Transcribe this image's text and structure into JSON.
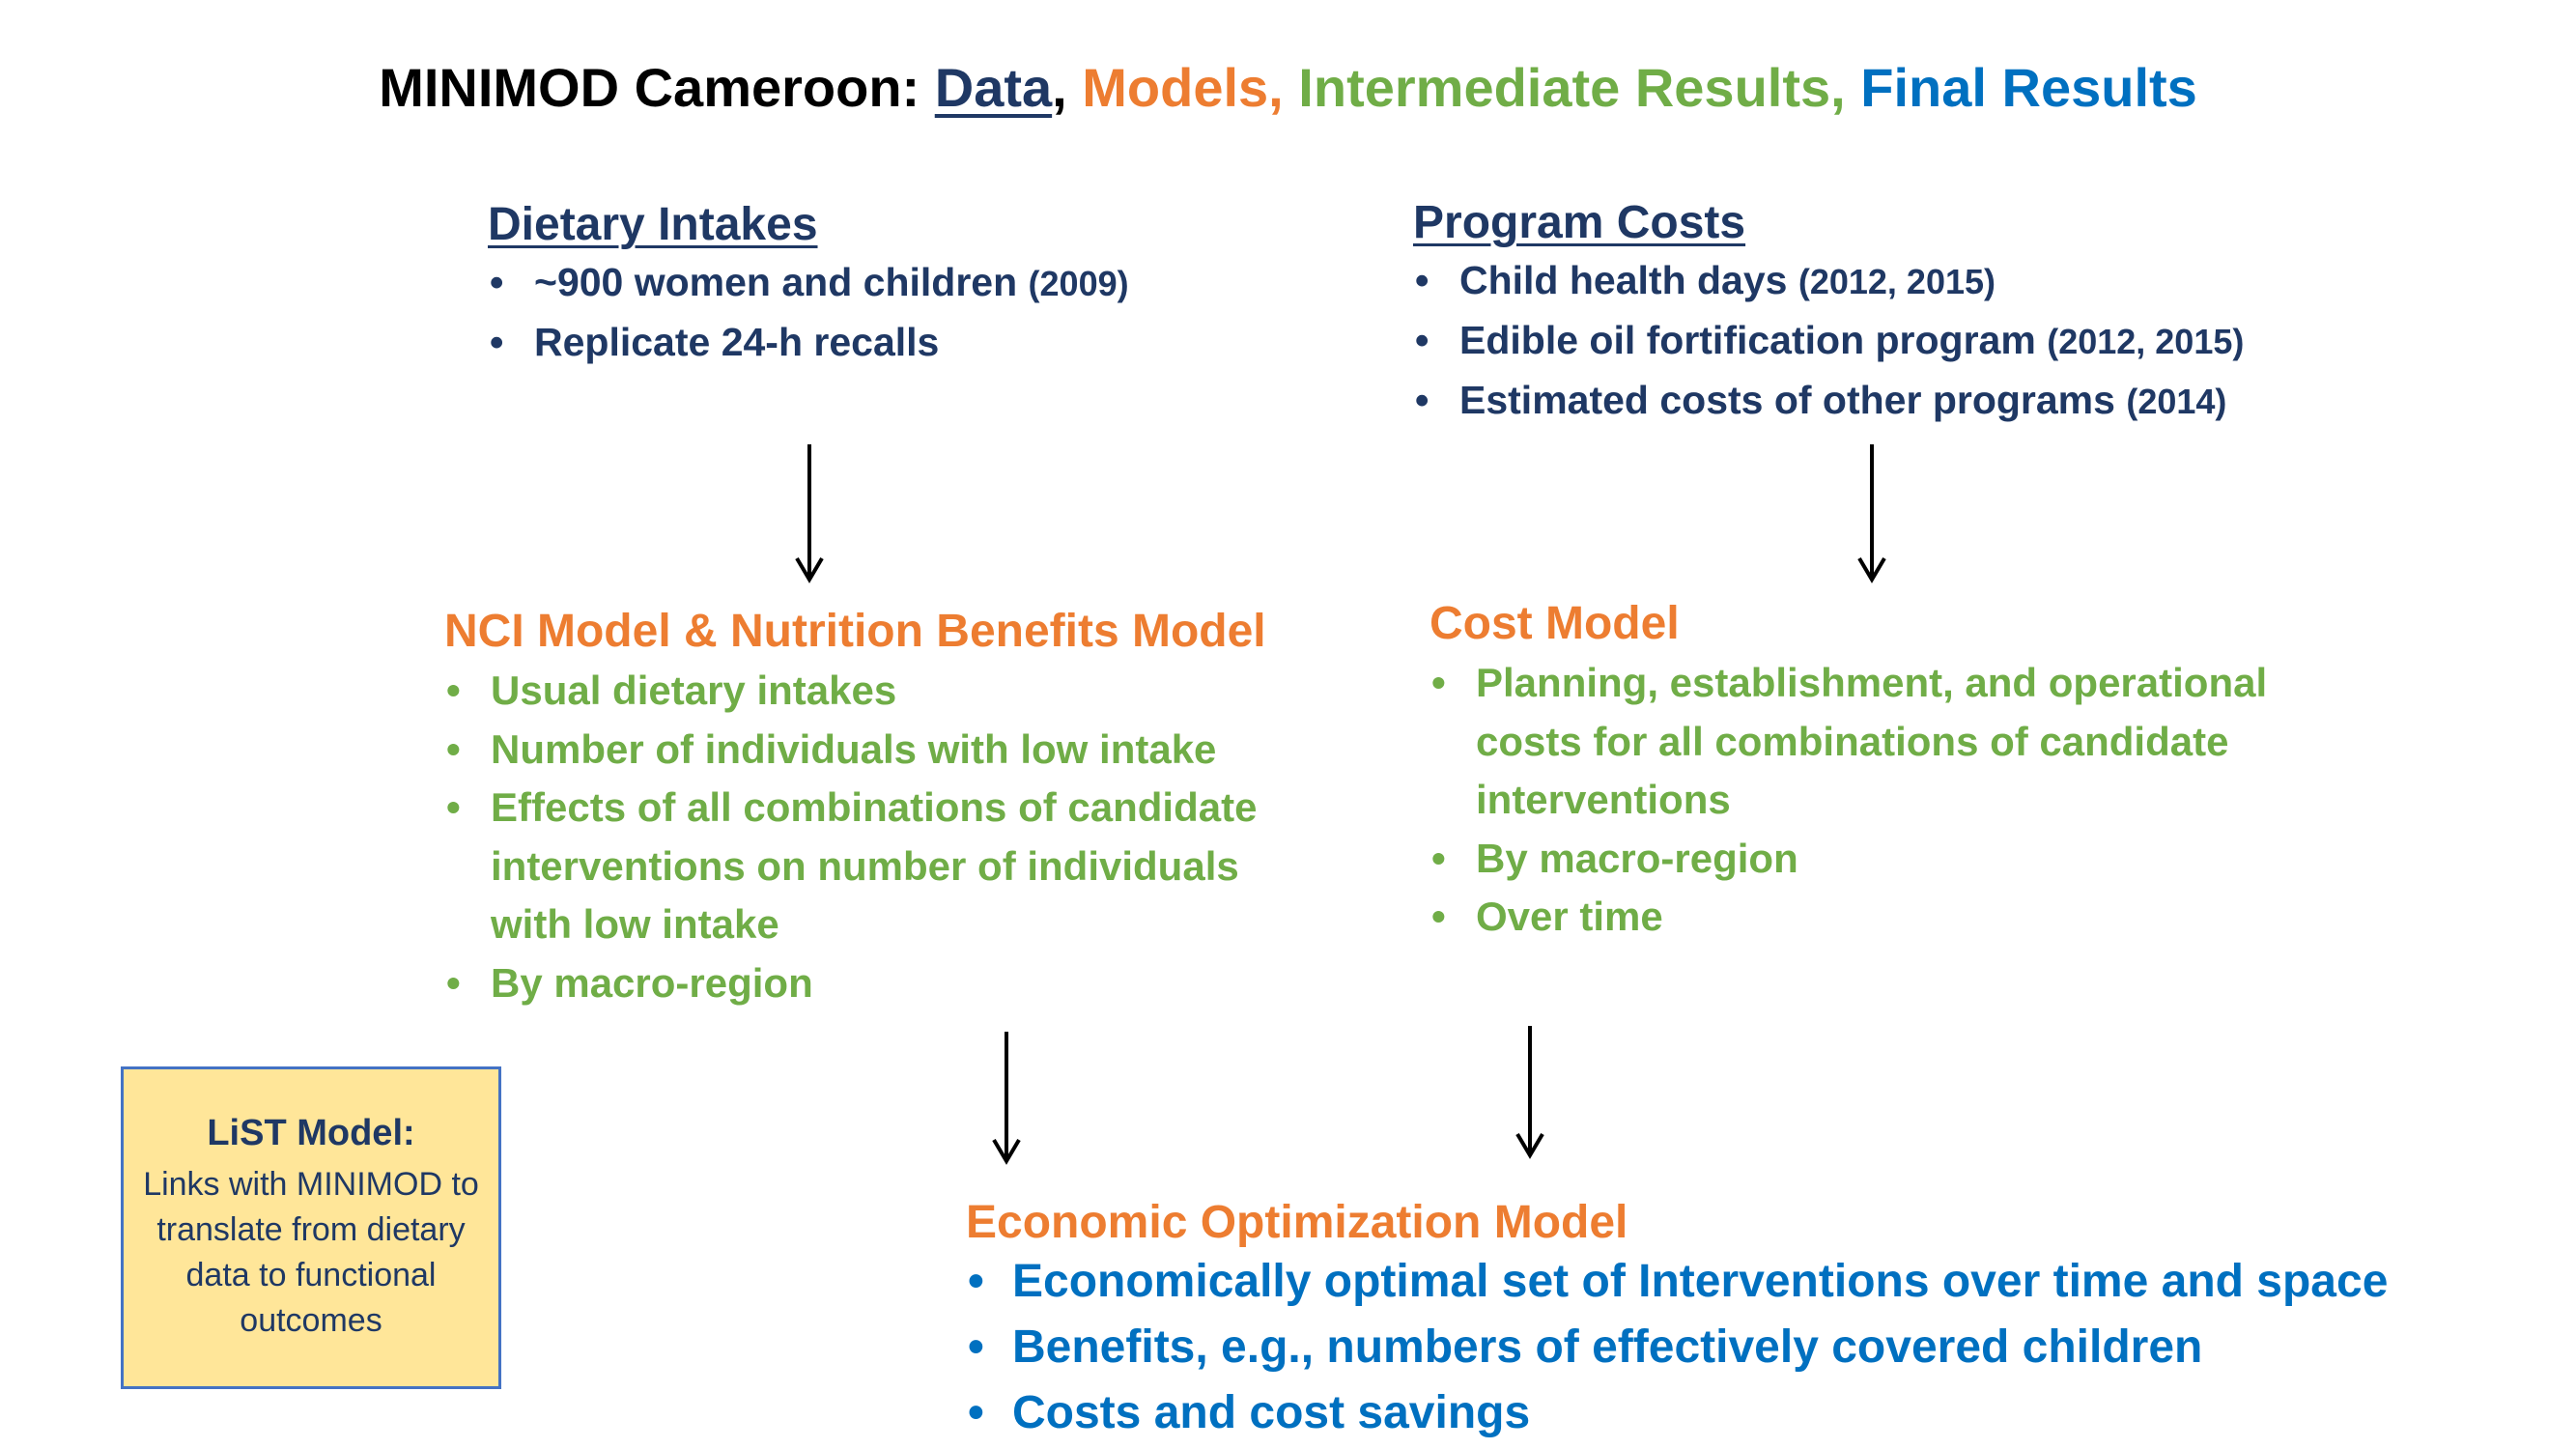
{
  "title": {
    "prefix": "MINIMOD Cameroon: ",
    "data": "Data",
    "sep1": ", ",
    "models": "Models, ",
    "intermediate": "Intermediate Results, ",
    "final": "Final Results"
  },
  "dietary": {
    "heading": "Dietary Intakes",
    "items": [
      {
        "text": "~900 women and children ",
        "year": "(2009)"
      },
      {
        "text": "Replicate 24-h recalls",
        "year": ""
      }
    ]
  },
  "program_costs": {
    "heading": "Program Costs",
    "items": [
      {
        "text": "Child health days ",
        "year": "(2012, 2015)"
      },
      {
        "text": "Edible oil fortification program ",
        "year": "(2012, 2015)"
      },
      {
        "text": "Estimated costs of other programs ",
        "year": "(2014)"
      }
    ]
  },
  "nci_model": {
    "heading": "NCI Model & Nutrition Benefits Model",
    "items": [
      "Usual dietary intakes",
      "Number of individuals with low intake",
      "Effects of all combinations of candidate interventions on number of individuals with low intake",
      "By macro-region"
    ]
  },
  "cost_model": {
    "heading": "Cost Model",
    "items": [
      "Planning, establishment, and operational costs for all combinations of candidate interventions",
      "By macro-region",
      "Over time"
    ]
  },
  "list_model": {
    "title": "LiST Model:",
    "body": "Links with MINIMOD to translate from dietary data to functional outcomes"
  },
  "economic_model": {
    "heading": "Economic Optimization Model",
    "items": [
      "Economically optimal set of Interventions over time and space",
      "Benefits, e.g., numbers of effectively covered children",
      "Costs and cost savings"
    ]
  },
  "colors": {
    "data": "#1f3864",
    "models": "#ed7d31",
    "intermediate": "#70ad47",
    "final": "#0070c0",
    "list_box_fill": "#ffe699",
    "list_box_border": "#4472c4"
  }
}
